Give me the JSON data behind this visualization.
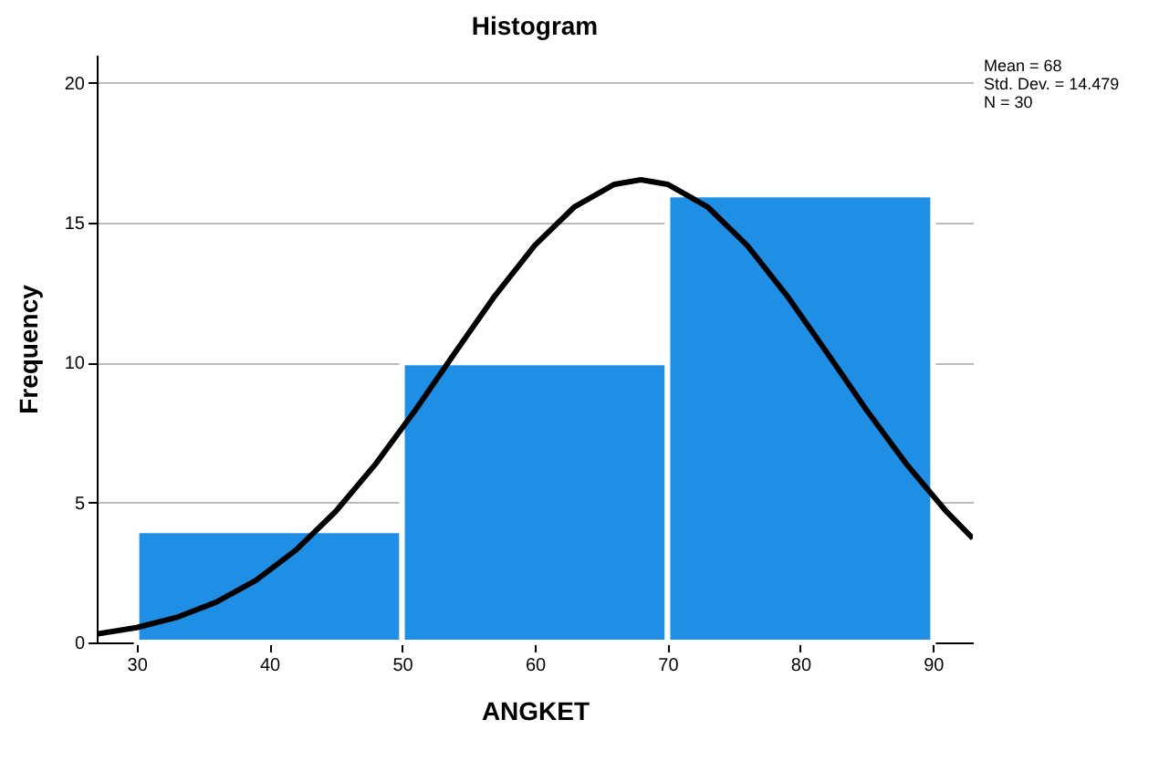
{
  "chart_data": {
    "type": "histogram",
    "title": "Histogram",
    "xlabel": "ANGKET",
    "ylabel": "Frequency",
    "bins": [
      30,
      50,
      70,
      90
    ],
    "values": [
      4,
      10,
      16
    ],
    "color": "#1f8fe6",
    "series": [
      {
        "type": "line",
        "color": "#000000",
        "x": [
          27,
          30,
          33,
          36,
          39,
          42,
          45,
          48,
          51,
          54,
          57,
          60,
          63,
          66,
          68,
          70,
          73,
          76,
          79,
          82,
          85,
          88,
          91,
          93
        ],
        "values": [
          0.3,
          0.53,
          0.89,
          1.44,
          2.22,
          3.3,
          4.68,
          6.37,
          8.3,
          10.36,
          12.39,
          14.19,
          15.57,
          16.37,
          16.53,
          16.37,
          15.57,
          14.19,
          12.39,
          10.36,
          8.3,
          6.37,
          4.68,
          3.72
        ]
      }
    ],
    "xlim": [
      27,
      93
    ],
    "xticks": [
      30,
      40,
      50,
      60,
      70,
      80,
      90
    ],
    "ylim": [
      0,
      21
    ],
    "yticks": [
      0,
      5,
      10,
      15,
      20
    ],
    "grid": "y",
    "annotations": [
      "Mean = 68",
      "Std. Dev. = 14.479",
      "N = 30"
    ]
  }
}
